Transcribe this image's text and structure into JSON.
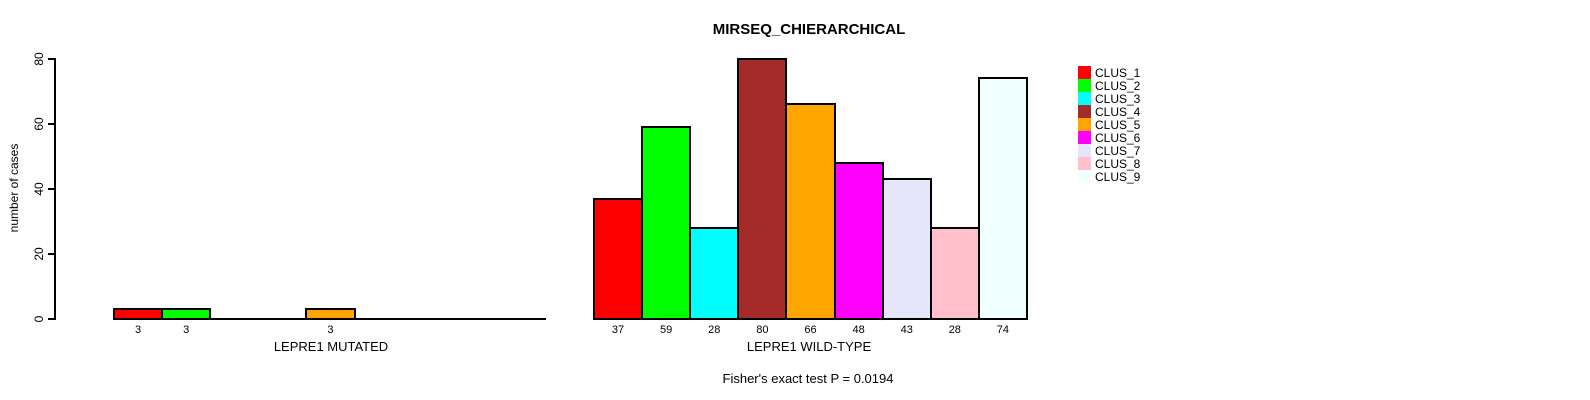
{
  "chart_data": {
    "type": "bar",
    "title": "MIRSEQ_CHIERARCHICAL",
    "ylabel": "number of cases",
    "ylim": [
      0,
      80
    ],
    "yticks": [
      0,
      20,
      40,
      60,
      80
    ],
    "grid": false,
    "legend_position": "right",
    "clusters": [
      {
        "name": "CLUS_1",
        "color": "#FF0000"
      },
      {
        "name": "CLUS_2",
        "color": "#00FF00"
      },
      {
        "name": "CLUS_3",
        "color": "#00FFFF"
      },
      {
        "name": "CLUS_4",
        "color": "#A52A2A"
      },
      {
        "name": "CLUS_5",
        "color": "#FFA500"
      },
      {
        "name": "CLUS_6",
        "color": "#FF00FF"
      },
      {
        "name": "CLUS_7",
        "color": "#E6E6FA"
      },
      {
        "name": "CLUS_8",
        "color": "#FFC0CB"
      },
      {
        "name": "CLUS_9",
        "color": "#F0FFFF"
      }
    ],
    "panels": [
      {
        "xlabel": "LEPRE1 MUTATED",
        "categories": [
          "CLUS_1",
          "CLUS_2",
          "CLUS_3",
          "CLUS_4",
          "CLUS_5",
          "CLUS_6",
          "CLUS_7",
          "CLUS_8",
          "CLUS_9"
        ],
        "values": [
          3,
          3,
          0,
          0,
          3,
          0,
          0,
          0,
          0
        ],
        "bar_labels": [
          "3",
          "3",
          "",
          "",
          "3",
          "",
          "",
          "",
          ""
        ]
      },
      {
        "xlabel": "LEPRE1 WILD-TYPE",
        "categories": [
          "CLUS_1",
          "CLUS_2",
          "CLUS_3",
          "CLUS_4",
          "CLUS_5",
          "CLUS_6",
          "CLUS_7",
          "CLUS_8",
          "CLUS_9"
        ],
        "values": [
          37,
          59,
          28,
          80,
          66,
          48,
          43,
          28,
          74
        ],
        "bar_labels": [
          "37",
          "59",
          "28",
          "80",
          "66",
          "48",
          "43",
          "28",
          "74"
        ]
      }
    ],
    "annotation": "Fisher's exact test P = 0.0194"
  }
}
